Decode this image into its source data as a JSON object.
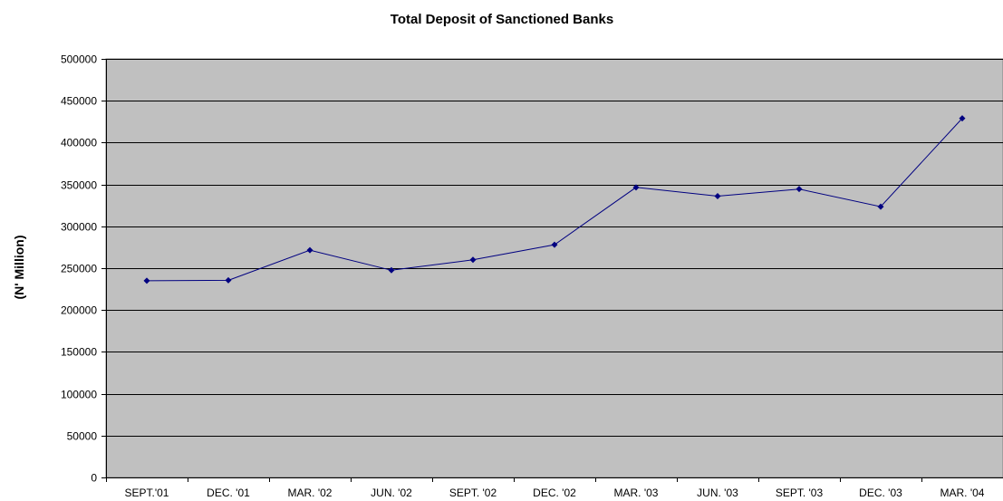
{
  "chart_data": {
    "type": "line",
    "title": "Total Deposit of Sanctioned Banks",
    "xlabel": "",
    "ylabel": "(N' Million)",
    "categories": [
      "SEPT.'01",
      "DEC. '01",
      "MAR. '02",
      "JUN. '02",
      "SEPT. '02",
      "DEC. '02",
      "MAR. '03",
      "JUN. '03",
      "SEPT. '03",
      "DEC. '03",
      "MAR. '04"
    ],
    "series": [
      {
        "values": [
          235000,
          235500,
          271500,
          247500,
          260000,
          278000,
          346500,
          336000,
          344500,
          323500,
          429000
        ]
      }
    ],
    "ylim": [
      0,
      500000
    ],
    "yticks": [
      "0",
      "50000",
      "100000",
      "150000",
      "200000",
      "250000",
      "300000",
      "350000",
      "400000",
      "450000",
      "500000"
    ],
    "grid": true,
    "legend": "none",
    "colors": {
      "plot_background": "#c0c0c0",
      "line": "#000080",
      "grid": "#000000"
    }
  }
}
